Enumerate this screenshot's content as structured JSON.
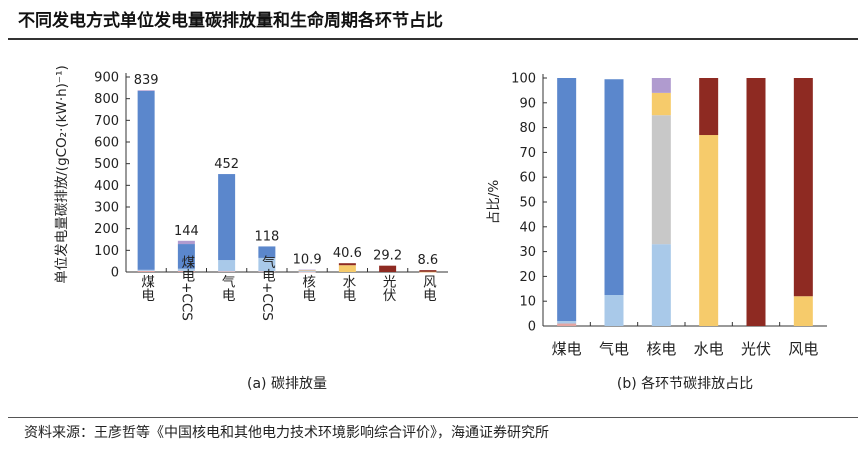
{
  "title": "不同发电方式单位发电量碳排放量和生命周期各环节占比",
  "source": "资料来源：王彦哲等《中国核电和其他电力技术环境影响综合评价》，海通证券研究所",
  "colors": {
    "blue": "#5b87cc",
    "light_blue": "#a9c9e9",
    "gray": "#c8c8c8",
    "yellow": "#f6cb6b",
    "purple": "#b09bcf",
    "pink": "#e4a5a1",
    "red": "#8e2a22"
  },
  "chart_data": [
    {
      "type": "bar",
      "caption": "(a)  碳排放量",
      "ylabel": "单位发电量碳排放/(gCO₂·(kW·h)⁻¹)",
      "ylim": [
        0,
        900
      ],
      "yticks": [
        0,
        100,
        200,
        300,
        400,
        500,
        600,
        700,
        800,
        900
      ],
      "categories": [
        "煤电",
        "煤电+CCS",
        "气电",
        "气电+CCS",
        "核电",
        "水电",
        "光伏",
        "风电"
      ],
      "totals_labels": [
        "839",
        "144",
        "452",
        "118",
        "10.9",
        "40.6",
        "29.2",
        "8.6"
      ],
      "totals": [
        839,
        144,
        452,
        118,
        10.9,
        40.6,
        29.2,
        8.6
      ],
      "series": [
        {
          "color": "pink",
          "values": [
            5,
            5,
            3,
            3,
            0.5,
            0,
            0,
            0.5
          ]
        },
        {
          "color": "light_blue",
          "values": [
            5,
            10,
            52,
            62,
            2,
            0,
            0,
            0
          ]
        },
        {
          "color": "blue",
          "values": [
            826,
            114,
            397,
            53,
            0,
            0,
            0,
            0
          ]
        },
        {
          "color": "gray",
          "values": [
            0,
            0,
            0,
            0,
            5.4,
            0,
            0,
            0
          ]
        },
        {
          "color": "yellow",
          "values": [
            0,
            0,
            0,
            0,
            1,
            31.3,
            0,
            1
          ]
        },
        {
          "color": "red",
          "values": [
            0,
            0,
            0,
            0,
            0,
            9.3,
            29.2,
            7.1
          ]
        },
        {
          "color": "purple",
          "values": [
            3,
            15,
            0,
            0,
            2,
            0,
            0,
            0
          ]
        }
      ]
    },
    {
      "type": "bar",
      "caption": "(b)  各环节碳排放占比",
      "ylabel": "占比/%",
      "ylim": [
        0,
        100
      ],
      "yticks": [
        0,
        10,
        20,
        30,
        40,
        50,
        60,
        70,
        80,
        90,
        100
      ],
      "categories": [
        "煤电",
        "气电",
        "核电",
        "水电",
        "光伏",
        "风电"
      ],
      "series": [
        {
          "color": "pink",
          "values": [
            1,
            0,
            0,
            0,
            0,
            0
          ]
        },
        {
          "color": "light_blue",
          "values": [
            1,
            12.5,
            33,
            0,
            0,
            0
          ]
        },
        {
          "color": "blue",
          "values": [
            98,
            87,
            0,
            0,
            0,
            0
          ]
        },
        {
          "color": "gray",
          "values": [
            0,
            0,
            52,
            0,
            0,
            0
          ]
        },
        {
          "color": "yellow",
          "values": [
            0,
            0,
            9,
            77,
            0,
            12
          ]
        },
        {
          "color": "red",
          "values": [
            0,
            0,
            0,
            23,
            100,
            88
          ]
        },
        {
          "color": "purple",
          "values": [
            0,
            0,
            6,
            0,
            0,
            0
          ]
        }
      ]
    }
  ]
}
